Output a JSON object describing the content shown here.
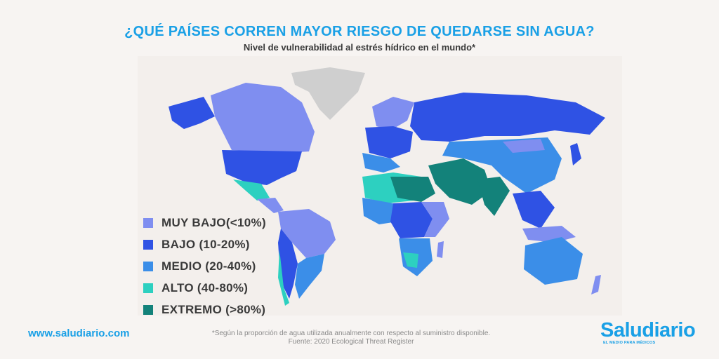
{
  "header": {
    "title": "¿QUÉ PAÍSES CORREN MAYOR RIESGO DE QUEDARSE SIN AGUA?",
    "subtitle": "Nivel de vulnerabilidad al estrés hídrico en el mundo*"
  },
  "legend": {
    "items": [
      {
        "label": "MUY BAJO(<10%)",
        "color": "#7f8ef0"
      },
      {
        "label": "BAJO (10-20%)",
        "color": "#2f52e4"
      },
      {
        "label": "MEDIO (20-40%)",
        "color": "#3b8ee8"
      },
      {
        "label": "ALTO (40-80%)",
        "color": "#2dd0c0"
      },
      {
        "label": "EXTREMO (>80%)",
        "color": "#13827a"
      }
    ]
  },
  "map": {
    "no_data_color": "#cfcfcf"
  },
  "footer": {
    "website": "www.saludiario.com",
    "footnote_line1": "*Según la proporción de agua utilizada anualmente con respecto al suministro disponible.",
    "footnote_line2": "Fuente: 2020 Ecological Threat Register",
    "logo_text": "Saludiario",
    "logo_tagline": "EL MEDIO PARA MÉDICOS"
  }
}
